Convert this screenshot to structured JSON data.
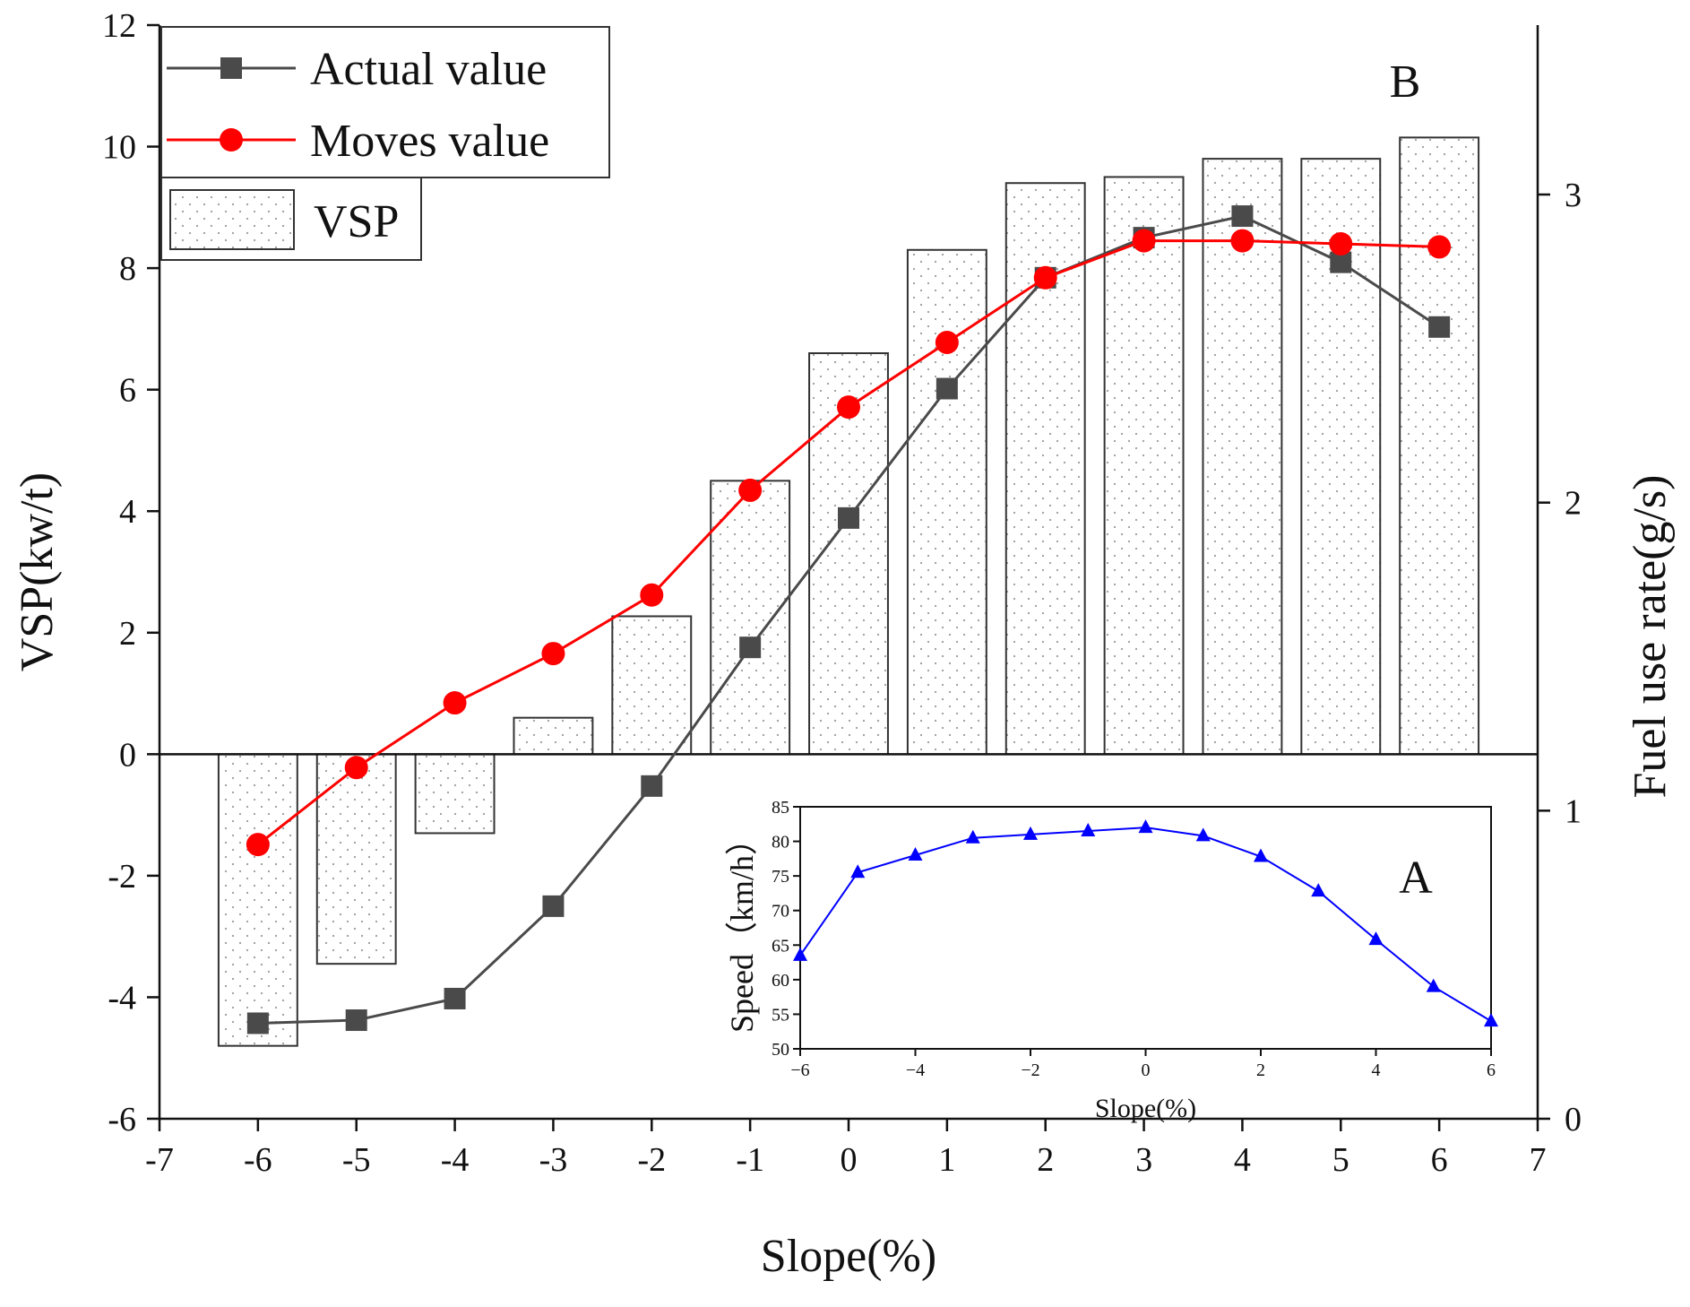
{
  "chart_data": [
    {
      "type": "bar+line",
      "panel": "main",
      "panel_label": "B",
      "xlabel": "Slope(%)",
      "ylabel_left": "VSP(kw/t)",
      "ylabel_right": "Fuel use rate(g/s)",
      "xlim": [
        -7,
        7
      ],
      "ylim_left": [
        -6,
        12
      ],
      "ylim_right": [
        0,
        3.55
      ],
      "x_ticks": [
        -7,
        -6,
        -5,
        -4,
        -3,
        -2,
        -1,
        0,
        1,
        2,
        3,
        4,
        5,
        6,
        7
      ],
      "x_tick_labels": [
        "-7",
        "-6",
        "-5",
        "-4",
        "-3",
        "-2",
        "-1",
        "0",
        "1",
        "2",
        "3",
        "4",
        "5",
        "6",
        "7"
      ],
      "y_left_ticks": [
        -6,
        -4,
        -2,
        0,
        2,
        4,
        6,
        8,
        10,
        12
      ],
      "y_left_tick_labels": [
        "-6",
        "-4",
        "-2",
        "0",
        "2",
        "4",
        "6",
        "8",
        "10",
        "12"
      ],
      "y_right_ticks": [
        0,
        1,
        2,
        3
      ],
      "y_right_tick_labels": [
        "0",
        "1",
        "2",
        "3"
      ],
      "legend": [
        "Actual value",
        "Moves value",
        "VSP"
      ],
      "legend_position": "top-left",
      "series": [
        {
          "name": "VSP",
          "kind": "bar",
          "axis": "left",
          "color": "#333333",
          "x": [
            -6,
            -5,
            -4,
            -3,
            -2,
            -1,
            0,
            1,
            2,
            3,
            4,
            5,
            6
          ],
          "values": [
            -4.8,
            -3.45,
            -1.3,
            0.6,
            2.27,
            4.5,
            6.6,
            8.3,
            9.4,
            9.5,
            9.8,
            9.8,
            10.15
          ]
        },
        {
          "name": "Actual value",
          "kind": "line",
          "marker": "square",
          "axis": "right",
          "color": "#4a4a4a",
          "x": [
            -6,
            -5,
            -4,
            -3,
            -2,
            -1,
            0,
            1,
            2,
            3,
            4,
            5,
            6
          ],
          "values": [
            0.31,
            0.32,
            0.39,
            0.69,
            1.08,
            1.53,
            1.95,
            2.37,
            2.73,
            2.86,
            2.93,
            2.78,
            2.57
          ]
        },
        {
          "name": "Moves value",
          "kind": "line",
          "marker": "circle",
          "axis": "right",
          "color": "#ff0000",
          "x": [
            -6,
            -5,
            -4,
            -3,
            -2,
            -1,
            0,
            1,
            2,
            3,
            4,
            5,
            6
          ],
          "values": [
            0.89,
            1.14,
            1.35,
            1.51,
            1.7,
            2.04,
            2.31,
            2.52,
            2.73,
            2.85,
            2.85,
            2.84,
            2.83
          ]
        }
      ]
    },
    {
      "type": "line",
      "panel": "inset",
      "panel_label": "A",
      "xlabel": "Slope(%)",
      "ylabel": "Speed（km/h）",
      "xlim": [
        -6,
        6
      ],
      "ylim": [
        50,
        85
      ],
      "x_ticks": [
        -6,
        -4,
        -2,
        0,
        2,
        4,
        6
      ],
      "x_tick_labels": [
        "−6",
        "−4",
        "−2",
        "0",
        "2",
        "4",
        "6"
      ],
      "y_ticks": [
        50,
        55,
        60,
        65,
        70,
        75,
        80,
        85
      ],
      "y_tick_labels": [
        "50",
        "55",
        "60",
        "65",
        "70",
        "75",
        "80",
        "85"
      ],
      "series": [
        {
          "name": "Speed",
          "marker": "triangle",
          "color": "#0000ff",
          "x": [
            -6,
            -5,
            -4,
            -3,
            -2,
            -1,
            0,
            1,
            2,
            3,
            4,
            5,
            6
          ],
          "values": [
            63.5,
            75.5,
            78,
            80.5,
            81,
            81.5,
            82,
            80.8,
            77.8,
            72.8,
            65.8,
            59,
            54
          ]
        }
      ]
    }
  ]
}
